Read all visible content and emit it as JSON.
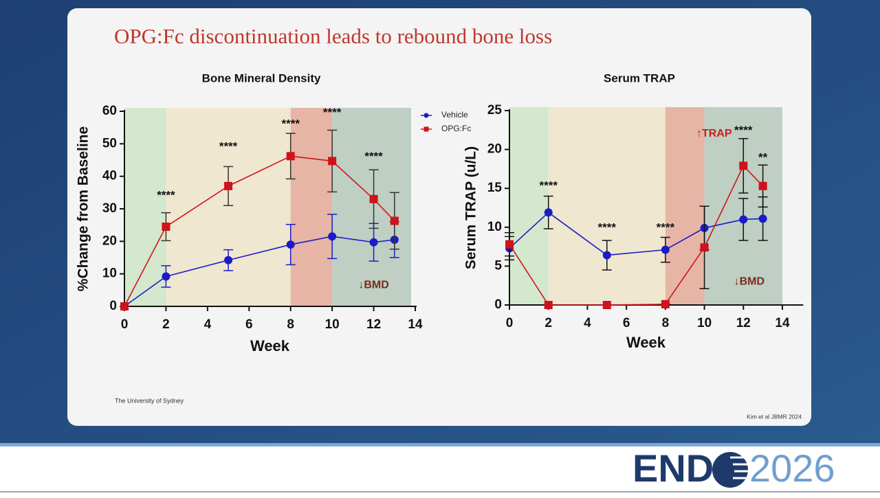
{
  "slide": {
    "title": "OPG:Fc discontinuation leads to rebound bone loss",
    "footer_left": "The University of Sydney",
    "citation": "Kim et al JBMR 2024"
  },
  "logo": {
    "left": "END",
    "right": "2026"
  },
  "chart_data": [
    {
      "type": "line",
      "title": "Bone Mineral Density",
      "x_label": "Week",
      "y_label": "%Change from Baseline",
      "x": [
        0,
        2,
        5,
        8,
        10,
        12,
        13
      ],
      "xlim": [
        0,
        14
      ],
      "xticks": [
        0,
        2,
        4,
        6,
        8,
        10,
        12,
        14
      ],
      "ylim": [
        0,
        60
      ],
      "yticks": [
        0,
        10,
        20,
        30,
        40,
        50,
        60
      ],
      "legend": "right",
      "regions": [
        {
          "start": 0,
          "end": 2,
          "color": "#d3e8cd"
        },
        {
          "start": 2,
          "end": 8,
          "color": "#efe7cf"
        },
        {
          "start": 8,
          "end": 10,
          "color": "#e6b5a6"
        },
        {
          "start": 10,
          "end": 13.8,
          "color": "#bfcfc3"
        }
      ],
      "series": [
        {
          "name": "Vehicle",
          "color": "#1b1bc8",
          "error_color": "#1b1bc8",
          "marker": "circle",
          "values": [
            0,
            9.2,
            14.2,
            19,
            21.5,
            19.7,
            20.5
          ],
          "errors": [
            0,
            3.3,
            3.2,
            6.2,
            6.8,
            5.8,
            5.5
          ]
        },
        {
          "name": "OPG:Fc",
          "color": "#d0121b",
          "error_color": "#333333",
          "marker": "square",
          "values": [
            0,
            24.5,
            37,
            46.2,
            44.7,
            33,
            26.3
          ],
          "errors": [
            0,
            4.3,
            6,
            7,
            9.5,
            9,
            8.7
          ]
        }
      ],
      "annotations": [
        {
          "text": "****",
          "color": "#111111"
        },
        {
          "text": "****",
          "color": "#111111"
        },
        {
          "text": "****",
          "color": "#111111"
        },
        {
          "text": "****",
          "color": "#111111"
        },
        {
          "text": "****",
          "color": "#111111"
        },
        {
          "text": "↓BMD",
          "color": "#7a2a1c"
        }
      ]
    },
    {
      "type": "line",
      "title": "Serum TRAP",
      "x_label": "Week",
      "y_label": "Serum TRAP (u/L)",
      "x": [
        0,
        2,
        5,
        8,
        10,
        12,
        13
      ],
      "xlim": [
        0,
        15
      ],
      "xticks": [
        0,
        2,
        4,
        6,
        8,
        10,
        12,
        14
      ],
      "ylim": [
        0,
        25
      ],
      "yticks": [
        0,
        5,
        10,
        15,
        20,
        25
      ],
      "regions": [
        {
          "start": 0,
          "end": 2,
          "color": "#d3e8cd"
        },
        {
          "start": 2,
          "end": 8,
          "color": "#efe7cf"
        },
        {
          "start": 8,
          "end": 10,
          "color": "#e6b5a6"
        },
        {
          "start": 10,
          "end": 14,
          "color": "#bfcfc3"
        }
      ],
      "series": [
        {
          "color": "#1b1bc8",
          "error_color": "#111111",
          "marker": "circle",
          "values": [
            7.3,
            11.9,
            6.4,
            7.1,
            9.9,
            11,
            11.1
          ],
          "errors": [
            1.5,
            2.1,
            1.9,
            1.6,
            2.8,
            2.7,
            2.8
          ]
        },
        {
          "color": "#d0121b",
          "error_color": "#111111",
          "marker": "square",
          "values": [
            7.8,
            0,
            0,
            0.1,
            7.4,
            17.9,
            15.3
          ],
          "errors": [
            1.5,
            0,
            0,
            0,
            5.3,
            3.5,
            2.7
          ]
        }
      ],
      "annotations": [
        {
          "text": "****",
          "color": "#111111"
        },
        {
          "text": "****",
          "color": "#111111"
        },
        {
          "text": "****",
          "color": "#111111"
        },
        {
          "text": "****",
          "color": "#111111"
        },
        {
          "text": "**",
          "color": "#111111"
        },
        {
          "text": "↑TRAP",
          "color": "#c8201c"
        },
        {
          "text": "↓BMD",
          "color": "#7a2a1c"
        }
      ]
    }
  ]
}
